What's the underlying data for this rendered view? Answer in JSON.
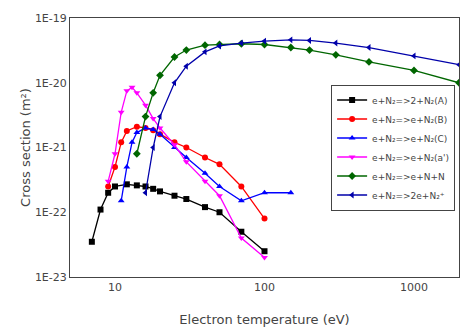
{
  "chart_data": {
    "type": "line",
    "title": "",
    "xlabel": "Electron temperature (eV)",
    "ylabel": "Cross section (m²)",
    "log": true,
    "grid": false,
    "legend": "right",
    "xlim": [
      5,
      2000
    ],
    "ylim": [
      1e-23,
      1e-19
    ],
    "xticks": [
      10,
      100,
      1000
    ],
    "yticks": [
      {
        "value": 1e-23,
        "label": "1E-23"
      },
      {
        "value": 1e-22,
        "label": "1E-22"
      },
      {
        "value": 1e-21,
        "label": "1E-21"
      },
      {
        "value": 1e-20,
        "label": "1E-20"
      },
      {
        "value": 1e-19,
        "label": "1E-19"
      }
    ],
    "series": [
      {
        "name": "e+N₂=>2+N₂(A)",
        "color": "#000000",
        "marker": "square",
        "x": [
          7,
          8,
          9,
          10,
          12,
          14,
          16,
          18,
          20,
          25,
          30,
          40,
          50,
          70,
          100
        ],
        "values": [
          3.5e-23,
          1.1e-22,
          2e-22,
          2.5e-22,
          2.7e-22,
          2.6e-22,
          2.5e-22,
          2.3e-22,
          2.1e-22,
          1.8e-22,
          1.6e-22,
          1.2e-22,
          1e-22,
          5e-23,
          2.5e-23
        ]
      },
      {
        "name": "e+N₂=>e+N₂(B)",
        "color": "#ff0000",
        "marker": "circle",
        "x": [
          9,
          10,
          11,
          12,
          14,
          16,
          18,
          20,
          25,
          30,
          40,
          50,
          70,
          100
        ],
        "values": [
          2.5e-22,
          5e-22,
          1.2e-21,
          1.8e-21,
          2.1e-21,
          2e-21,
          1.85e-21,
          1.6e-21,
          1.2e-21,
          1e-21,
          7e-22,
          5.5e-22,
          2.5e-22,
          8e-23
        ]
      },
      {
        "name": "e+N₂=>e+N₂(C)",
        "color": "#0000ff",
        "marker": "triangle-up",
        "x": [
          11,
          12,
          13,
          14,
          16,
          18,
          20,
          25,
          30,
          40,
          50,
          70,
          100,
          150
        ],
        "values": [
          1.5e-22,
          5e-22,
          1.2e-21,
          1.7e-21,
          2e-21,
          1.9e-21,
          1.6e-21,
          1e-21,
          7e-22,
          4e-22,
          2.5e-22,
          1.5e-22,
          2e-22,
          2e-22
        ]
      },
      {
        "name": "e+N₂=>e+N₂(a')",
        "color": "#ff00ff",
        "marker": "triangle-down",
        "x": [
          9,
          10,
          11,
          12,
          13,
          14,
          16,
          18,
          20,
          25,
          30,
          40,
          50,
          70,
          100
        ],
        "values": [
          3e-22,
          8e-22,
          3.5e-21,
          7.5e-21,
          8.5e-21,
          7e-21,
          4.5e-21,
          2.8e-21,
          2e-21,
          1.1e-21,
          6e-22,
          3e-22,
          1.8e-22,
          4e-23,
          2e-23
        ]
      },
      {
        "name": "e+N₂=>e+N+N",
        "color": "#006600",
        "marker": "diamond",
        "x": [
          14,
          16,
          18,
          20,
          25,
          30,
          40,
          50,
          70,
          100,
          150,
          200,
          300,
          500,
          1000,
          2000
        ],
        "values": [
          8e-22,
          3e-21,
          7e-21,
          1.3e-20,
          2.5e-20,
          3.2e-20,
          3.8e-20,
          3.9e-20,
          4e-20,
          3.9e-20,
          3.5e-20,
          3.2e-20,
          2.7e-20,
          2.1e-20,
          1.55e-20,
          1e-20
        ]
      },
      {
        "name": "e+N₂=>2e+N₂⁺",
        "color": "#0000aa",
        "marker": "triangle-left",
        "x": [
          16,
          18,
          20,
          25,
          30,
          40,
          50,
          70,
          100,
          150,
          200,
          300,
          500,
          1000,
          2000
        ],
        "values": [
          2e-22,
          1e-21,
          3e-21,
          1e-20,
          1.8e-20,
          3e-20,
          3.7e-20,
          4.1e-20,
          4.4e-20,
          4.6e-20,
          4.5e-20,
          4.1e-20,
          3.5e-20,
          2.6e-20,
          1.9e-20
        ]
      }
    ]
  }
}
